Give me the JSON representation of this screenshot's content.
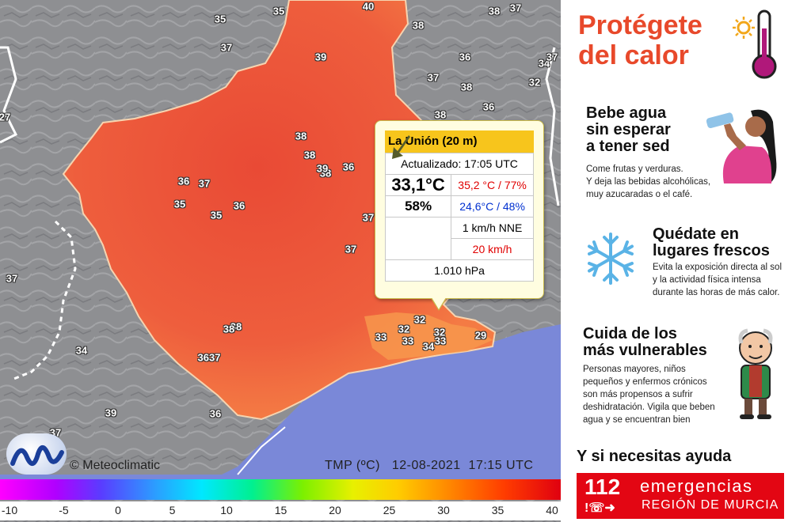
{
  "map": {
    "station_labels": [
      "35",
      "35",
      "40",
      "38",
      "37",
      "38",
      "37",
      "39",
      "37",
      "36",
      "34",
      "37",
      "38",
      "32",
      "38",
      "36",
      "27",
      "38",
      "38",
      "38",
      "39",
      "36",
      "36",
      "37",
      "35",
      "35",
      "36",
      "37",
      "37",
      "38",
      "33",
      "32",
      "32",
      "33",
      "32",
      "34",
      "33",
      "29",
      "38",
      "3637",
      "34",
      "39",
      "36",
      "37",
      "37"
    ],
    "credit": "© Meteoclimatic",
    "stamp": "TMP (ºC)   12-08-2021  17:15 UTC",
    "scale_ticks": [
      "-10",
      "-5",
      "0",
      "5",
      "10",
      "15",
      "20",
      "25",
      "30",
      "35",
      "40"
    ]
  },
  "popup": {
    "title": "La Unión (20 m)",
    "updated": "Actualizado: 17:05 UTC",
    "temp": "33,1°C",
    "humidity": "58%",
    "max": "35,2 °C / 77%",
    "min": "24,6°C / 48%",
    "wind": "1 km/h NNE",
    "gust": "20 km/h",
    "pressure": "1.010 hPa"
  },
  "panel": {
    "title_line1": "Protégete",
    "title_line2": "del calor",
    "s1_title_1": "Bebe agua",
    "s1_title_2": "sin esperar",
    "s1_title_3": "a tener sed",
    "s1_text_1": "Come frutas y verduras.",
    "s1_text_2": "Y deja las bebidas alcohólicas,",
    "s1_text_3": "muy azucaradas o el café.",
    "s2_title_1": "Quédate en",
    "s2_title_2": "lugares frescos",
    "s2_text_1": "Evita la exposición directa al sol",
    "s2_text_2": "y la actividad física intensa",
    "s2_text_3": "durante las horas de más calor.",
    "s3_title_1": "Cuida de los",
    "s3_title_2": "más vulnerables",
    "s3_text_1": "Personas mayores, niños",
    "s3_text_2": "pequeños y enfermos crónicos",
    "s3_text_3": "son más propensos a sufrir",
    "s3_text_4": "deshidratación. Vigila que beben",
    "s3_text_5": "agua y se encuentran bien",
    "help": "Y si necesitas ayuda",
    "e_num": "112",
    "e_word": "emergencias",
    "e_region": "REGIÓN DE MURCIA"
  },
  "colors": {
    "heat": "#ee5a3c",
    "sea": "#7b89d8",
    "title": "#e8492b",
    "e112": "#e30613"
  },
  "icons": [
    "sun-icon",
    "thermometer-icon",
    "drinking-woman-icon",
    "snowflake-icon",
    "elderly-man-icon",
    "phone-icon",
    "exit-icon"
  ]
}
